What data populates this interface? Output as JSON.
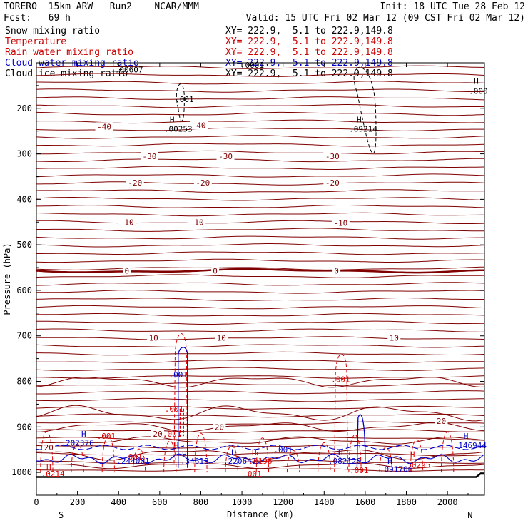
{
  "header": {
    "title_left": "TORERO  15km ARW   Run2    NCAR/MMM",
    "init": "Init: 18 UTC Tue 28 Feb 12",
    "fcst": "Fcst:   69 h",
    "valid": "Valid: 15 UTC Fri 02 Mar 12 (09 CST Fri 02 Mar 12)"
  },
  "legend": [
    {
      "label": "Snow mixing ratio",
      "xy": "",
      "color": "#000000"
    },
    {
      "label": "Temperature",
      "xy": "XY= 222.9,  5.1 to 222.9,149.8",
      "color": "#cc0000"
    },
    {
      "label": "Rain water mixing ratio",
      "xy": "XY= 222.9,  5.1 to 222.9,149.8",
      "color": "#cc0000"
    },
    {
      "label": "Cloud water mixing ratio",
      "xy": "XY= 222.9,  5.1 to 222.9,149.8",
      "color": "#0000cc"
    },
    {
      "label": "Cloud ice mixing ratio",
      "xy": "XY= 222.9,  5.1 to 222.9,149.8",
      "color": "#000000"
    }
  ],
  "snow_xy": "XY= 222.9,  5.1 to 222.9,149.8",
  "colors": {
    "temperature": "#800000",
    "freezing": "#800000",
    "rain": "#e00000",
    "cloud_water": "#0000cc",
    "snow": "#000000",
    "terrain": "#000000"
  },
  "chart_data": {
    "type": "line",
    "xlabel": "Distance (km)",
    "ylabel": "Pressure (hPa)",
    "xlim": [
      0,
      2180
    ],
    "ylim": [
      1050,
      100
    ],
    "x_ticks": [
      0,
      200,
      400,
      600,
      800,
      1000,
      1200,
      1400,
      1600,
      1800,
      2000
    ],
    "y_ticks": [
      200,
      300,
      400,
      500,
      600,
      700,
      800,
      900,
      1000
    ],
    "x_end_labels": {
      "left": "S",
      "right": "N"
    },
    "temperature_isotherms": [
      {
        "label": "-40",
        "p": 240
      },
      {
        "label": "-30",
        "p": 305
      },
      {
        "label": "-20",
        "p": 355
      },
      {
        "label": "-10",
        "p": 425
      },
      {
        "label": "0",
        "p": 555
      },
      {
        "label": "10",
        "p": 705
      },
      {
        "label": "20",
        "p": 890
      }
    ],
    "contour_labels": [
      {
        "text": "-40",
        "x": 330,
        "p": 240,
        "color": "#800000"
      },
      {
        "text": "-40",
        "x": 790,
        "p": 237,
        "color": "#800000"
      },
      {
        "text": "-30",
        "x": 550,
        "p": 305,
        "color": "#800000"
      },
      {
        "text": "-30",
        "x": 920,
        "p": 305,
        "color": "#800000"
      },
      {
        "text": "-30",
        "x": 1440,
        "p": 305,
        "color": "#800000"
      },
      {
        "text": "-20",
        "x": 480,
        "p": 363,
        "color": "#800000"
      },
      {
        "text": "-20",
        "x": 810,
        "p": 363,
        "color": "#800000"
      },
      {
        "text": "-20",
        "x": 1440,
        "p": 363,
        "color": "#800000"
      },
      {
        "text": "-10",
        "x": 440,
        "p": 450,
        "color": "#800000"
      },
      {
        "text": "-10",
        "x": 780,
        "p": 450,
        "color": "#800000"
      },
      {
        "text": "-10",
        "x": 1480,
        "p": 452,
        "color": "#800000"
      },
      {
        "text": "0",
        "x": 440,
        "p": 557,
        "color": "#800000"
      },
      {
        "text": "0",
        "x": 870,
        "p": 557,
        "color": "#800000"
      },
      {
        "text": "0",
        "x": 1460,
        "p": 557,
        "color": "#800000"
      },
      {
        "text": "10",
        "x": 570,
        "p": 704,
        "color": "#800000"
      },
      {
        "text": "10",
        "x": 900,
        "p": 704,
        "color": "#800000"
      },
      {
        "text": "10",
        "x": 1740,
        "p": 704,
        "color": "#800000"
      },
      {
        "text": "20",
        "x": 590,
        "p": 915,
        "color": "#800000"
      },
      {
        "text": "20",
        "x": 890,
        "p": 900,
        "color": "#800000"
      },
      {
        "text": "20",
        "x": 1970,
        "p": 887,
        "color": "#800000"
      },
      {
        "text": "20",
        "x": 60,
        "p": 945,
        "color": "#800000"
      },
      {
        "text": ".001",
        "x": 720,
        "p": 180,
        "color": "#000000"
      },
      {
        "text": "H",
        "x": 660,
        "p": 225,
        "color": "#000000"
      },
      {
        "text": ".00253",
        "x": 690,
        "p": 245,
        "color": "#000000"
      },
      {
        "text": "H",
        "x": 1570,
        "p": 225,
        "color": "#000000"
      },
      {
        "text": ".09214",
        "x": 1590,
        "p": 245,
        "color": "#000000"
      },
      {
        "text": "H",
        "x": 2140,
        "p": 140,
        "color": "#000000"
      },
      {
        "text": ".000",
        "x": 2150,
        "p": 162,
        "color": "#000000"
      },
      {
        "text": ".001",
        "x": 690,
        "p": 785,
        "color": "#0000cc"
      },
      {
        "text": ".001",
        "x": 670,
        "p": 860,
        "color": "#e00000"
      },
      {
        "text": ".001",
        "x": 1480,
        "p": 795,
        "color": "#e00000"
      },
      {
        "text": "H",
        "x": 230,
        "p": 915,
        "color": "#0000cc"
      },
      {
        "text": ".202376",
        "x": 200,
        "p": 935,
        "color": "#0000cc"
      },
      {
        "text": ".001",
        "x": 340,
        "p": 920,
        "color": "#e00000"
      },
      {
        "text": ".001",
        "x": 470,
        "p": 965,
        "color": "#e00000"
      },
      {
        "text": ".244001",
        "x": 470,
        "p": 975,
        "color": "#0000cc"
      },
      {
        "text": ".001",
        "x": 660,
        "p": 915,
        "color": "#e00000"
      },
      {
        "text": "H",
        "x": 680,
        "p": 940,
        "color": "#e00000"
      },
      {
        "text": "H",
        "x": 720,
        "p": 960,
        "color": "#0000cc"
      },
      {
        "text": ".34618",
        "x": 770,
        "p": 975,
        "color": "#0000cc"
      },
      {
        "text": "H",
        "x": 960,
        "p": 955,
        "color": "#0000cc"
      },
      {
        "text": ".220647",
        "x": 990,
        "p": 975,
        "color": "#0000cc"
      },
      {
        "text": "H",
        "x": 1060,
        "p": 955,
        "color": "#e00000"
      },
      {
        "text": ".0196",
        "x": 1090,
        "p": 975,
        "color": "#e00000"
      },
      {
        "text": ".001",
        "x": 1200,
        "p": 950,
        "color": "#0000cc"
      },
      {
        "text": ".001",
        "x": 1050,
        "p": 1003,
        "color": "#e00000"
      },
      {
        "text": "H",
        "x": 1480,
        "p": 955,
        "color": "#0000cc"
      },
      {
        "text": ".082120",
        "x": 1500,
        "p": 975,
        "color": "#0000cc"
      },
      {
        "text": ".001",
        "x": 1570,
        "p": 995,
        "color": "#e00000"
      },
      {
        "text": "H",
        "x": 1720,
        "p": 975,
        "color": "#0000cc"
      },
      {
        "text": ".091706",
        "x": 1750,
        "p": 993,
        "color": "#0000cc"
      },
      {
        "text": "H",
        "x": 1830,
        "p": 960,
        "color": "#e00000"
      },
      {
        "text": ".0295",
        "x": 1860,
        "p": 983,
        "color": "#e00000"
      },
      {
        "text": "H",
        "x": 2090,
        "p": 920,
        "color": "#0000cc"
      },
      {
        "text": ".146944",
        "x": 2110,
        "p": 940,
        "color": "#0000cc"
      },
      {
        "text": "H",
        "x": 60,
        "p": 988,
        "color": "#e00000"
      },
      {
        "text": ".0214",
        "x": 80,
        "p": 1003,
        "color": "#e00000"
      },
      {
        "text": ".00607",
        "x": 450,
        "p": 115,
        "color": "#000000"
      },
      {
        "text": ".0001",
        "x": 1050,
        "p": 105,
        "color": "#000000"
      }
    ],
    "surface_pressure": 1010
  }
}
